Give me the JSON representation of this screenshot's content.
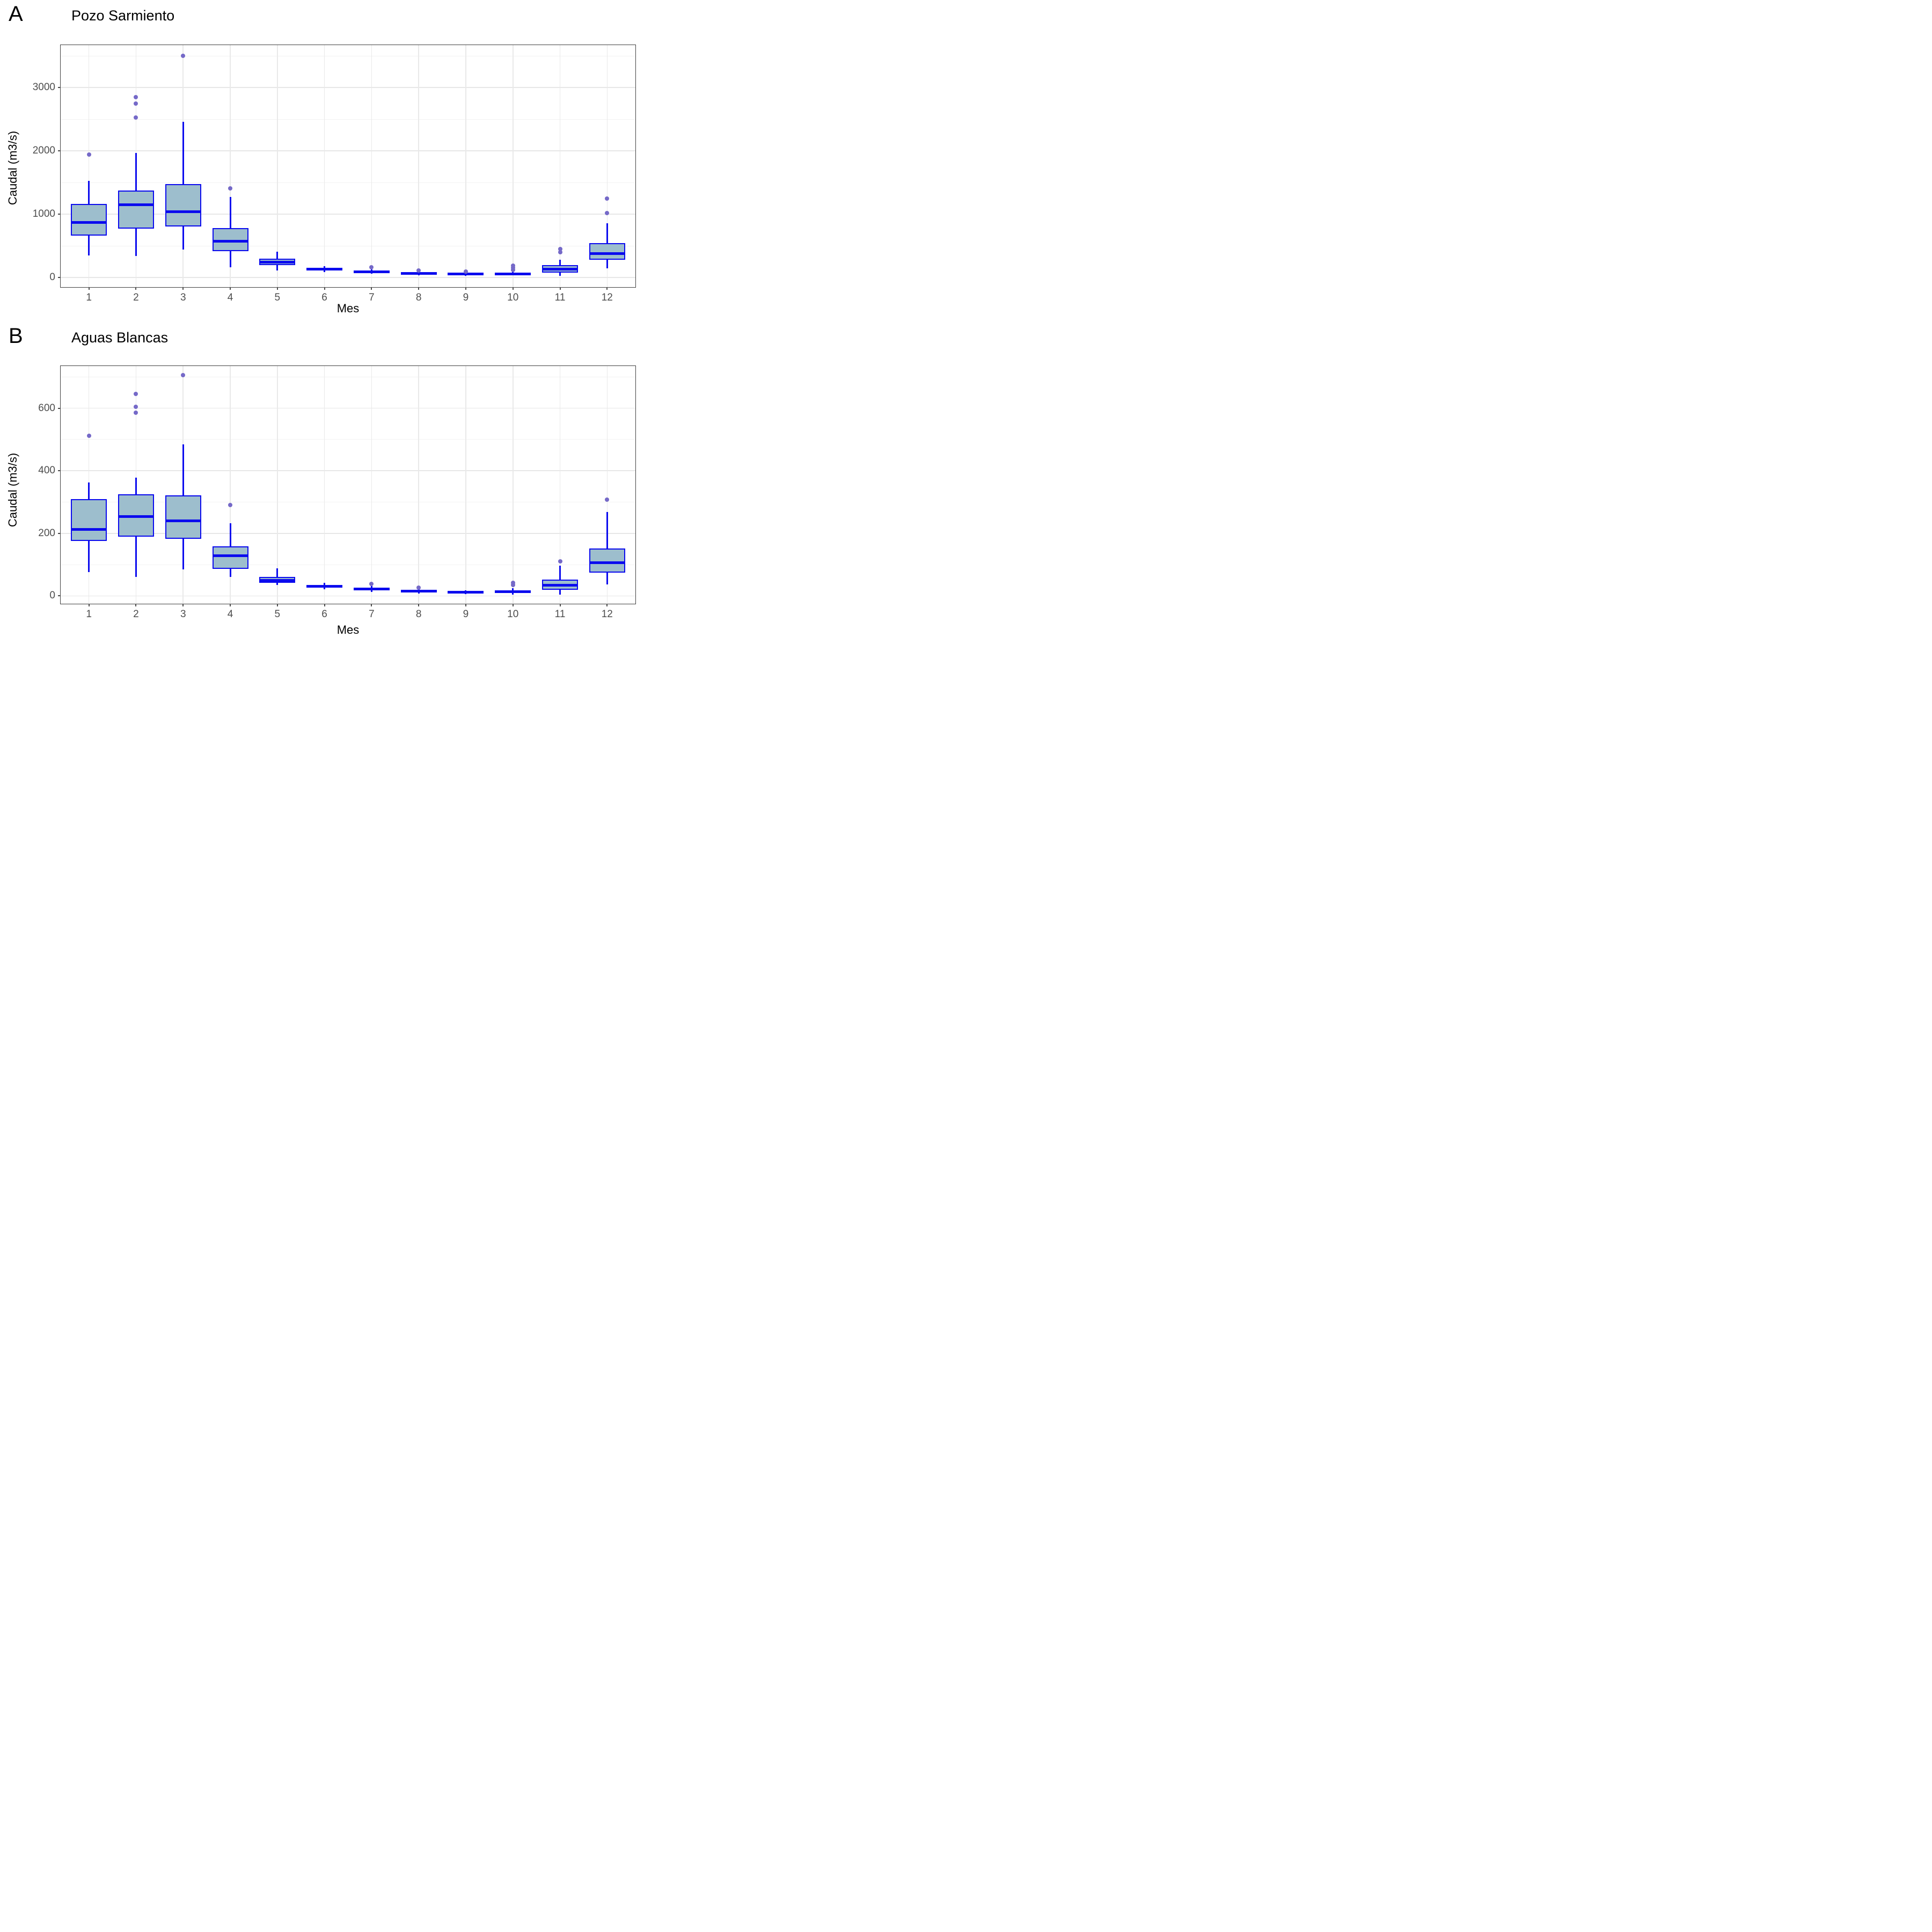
{
  "colors": {
    "box_fill": "#9dbecd",
    "box_stroke": "#0b0bee",
    "outlier_dot": "#7569c8",
    "grid_major": "#e7e7e7",
    "grid_minor": "#f2f2f2",
    "panel_border": "#404040",
    "tick_text": "#4d4d4d"
  },
  "chart_data": [
    {
      "type": "boxplot",
      "tag": "A",
      "title": "Pozo Sarmiento",
      "xlabel": "Mes",
      "ylabel": "Caudal (m3/s)",
      "categories": [
        "1",
        "2",
        "3",
        "4",
        "5",
        "6",
        "7",
        "8",
        "9",
        "10",
        "11",
        "12"
      ],
      "ylim": [
        -150,
        3670
      ],
      "y_major_ticks": [
        0,
        1000,
        2000,
        3000
      ],
      "y_minor_gridlines": [
        500,
        1500,
        2500,
        3500
      ],
      "grid": "on",
      "legend": "none",
      "boxes": [
        {
          "month": "1",
          "whisker_low": 350,
          "q1": 660,
          "median": 870,
          "q3": 1160,
          "whisker_high": 1530,
          "outliers": [
            1940
          ]
        },
        {
          "month": "2",
          "whisker_low": 340,
          "q1": 775,
          "median": 1150,
          "q3": 1375,
          "whisker_high": 1970,
          "outliers": [
            2530,
            2750,
            2850
          ]
        },
        {
          "month": "3",
          "whisker_low": 445,
          "q1": 810,
          "median": 1040,
          "q3": 1480,
          "whisker_high": 2460,
          "outliers": [
            3500
          ]
        },
        {
          "month": "4",
          "whisker_low": 160,
          "q1": 420,
          "median": 575,
          "q3": 780,
          "whisker_high": 1270,
          "outliers": [
            1410
          ]
        },
        {
          "month": "5",
          "whisker_low": 110,
          "q1": 200,
          "median": 240,
          "q3": 300,
          "whisker_high": 410,
          "outliers": []
        },
        {
          "month": "6",
          "whisker_low": 85,
          "q1": 110,
          "median": 130,
          "q3": 155,
          "whisker_high": 178,
          "outliers": []
        },
        {
          "month": "7",
          "whisker_low": 60,
          "q1": 76,
          "median": 95,
          "q3": 110,
          "whisker_high": 132,
          "outliers": [
            160
          ]
        },
        {
          "month": "8",
          "whisker_low": 34,
          "q1": 53,
          "median": 70,
          "q3": 84,
          "whisker_high": 98,
          "outliers": [
            112
          ]
        },
        {
          "month": "9",
          "whisker_low": 25,
          "q1": 40,
          "median": 55,
          "q3": 70,
          "whisker_high": 85,
          "outliers": [
            97
          ]
        },
        {
          "month": "10",
          "whisker_low": 34,
          "q1": 42,
          "median": 60,
          "q3": 80,
          "whisker_high": 98,
          "outliers": [
            125,
            155,
            190
          ]
        },
        {
          "month": "11",
          "whisker_low": 30,
          "q1": 80,
          "median": 130,
          "q3": 200,
          "whisker_high": 280,
          "outliers": [
            400,
            450
          ]
        },
        {
          "month": "12",
          "whisker_low": 145,
          "q1": 285,
          "median": 380,
          "q3": 545,
          "whisker_high": 855,
          "outliers": [
            1020,
            1250
          ]
        }
      ]
    },
    {
      "type": "boxplot",
      "tag": "B",
      "title": "Aguas Blancas",
      "xlabel": "Mes",
      "ylabel": "Caudal (m3/s)",
      "categories": [
        "1",
        "2",
        "3",
        "4",
        "5",
        "6",
        "7",
        "8",
        "9",
        "10",
        "11",
        "12"
      ],
      "ylim": [
        -25,
        735
      ],
      "y_major_ticks": [
        0,
        200,
        400,
        600
      ],
      "y_minor_gridlines": [
        100,
        300,
        500,
        700
      ],
      "grid": "on",
      "legend": "none",
      "boxes": [
        {
          "month": "1",
          "whisker_low": 77,
          "q1": 175,
          "median": 212,
          "q3": 310,
          "whisker_high": 362,
          "outliers": [
            512
          ]
        },
        {
          "month": "2",
          "whisker_low": 60,
          "q1": 190,
          "median": 253,
          "q3": 325,
          "whisker_high": 378,
          "outliers": [
            585,
            605,
            645
          ]
        },
        {
          "month": "3",
          "whisker_low": 85,
          "q1": 183,
          "median": 240,
          "q3": 322,
          "whisker_high": 485,
          "outliers": [
            705
          ]
        },
        {
          "month": "4",
          "whisker_low": 60,
          "q1": 87,
          "median": 128,
          "q3": 158,
          "whisker_high": 232,
          "outliers": [
            290
          ]
        },
        {
          "month": "5",
          "whisker_low": 35,
          "q1": 42,
          "median": 50,
          "q3": 61,
          "whisker_high": 88,
          "outliers": []
        },
        {
          "month": "6",
          "whisker_low": 22,
          "q1": 27,
          "median": 31,
          "q3": 35,
          "whisker_high": 42,
          "outliers": []
        },
        {
          "month": "7",
          "whisker_low": 13,
          "q1": 18,
          "median": 22,
          "q3": 26,
          "whisker_high": 31,
          "outliers": [
            38
          ]
        },
        {
          "month": "8",
          "whisker_low": 8,
          "q1": 12,
          "median": 15,
          "q3": 18,
          "whisker_high": 22,
          "outliers": [
            27
          ]
        },
        {
          "month": "9",
          "whisker_low": 6,
          "q1": 9,
          "median": 12,
          "q3": 15,
          "whisker_high": 18,
          "outliers": []
        },
        {
          "month": "10",
          "whisker_low": 4,
          "q1": 9,
          "median": 13,
          "q3": 18,
          "whisker_high": 24,
          "outliers": [
            35,
            42
          ]
        },
        {
          "month": "11",
          "whisker_low": 5,
          "q1": 19,
          "median": 35,
          "q3": 52,
          "whisker_high": 97,
          "outliers": [
            110
          ]
        },
        {
          "month": "12",
          "whisker_low": 36,
          "q1": 74,
          "median": 107,
          "q3": 152,
          "whisker_high": 268,
          "outliers": [
            308
          ]
        }
      ]
    }
  ]
}
